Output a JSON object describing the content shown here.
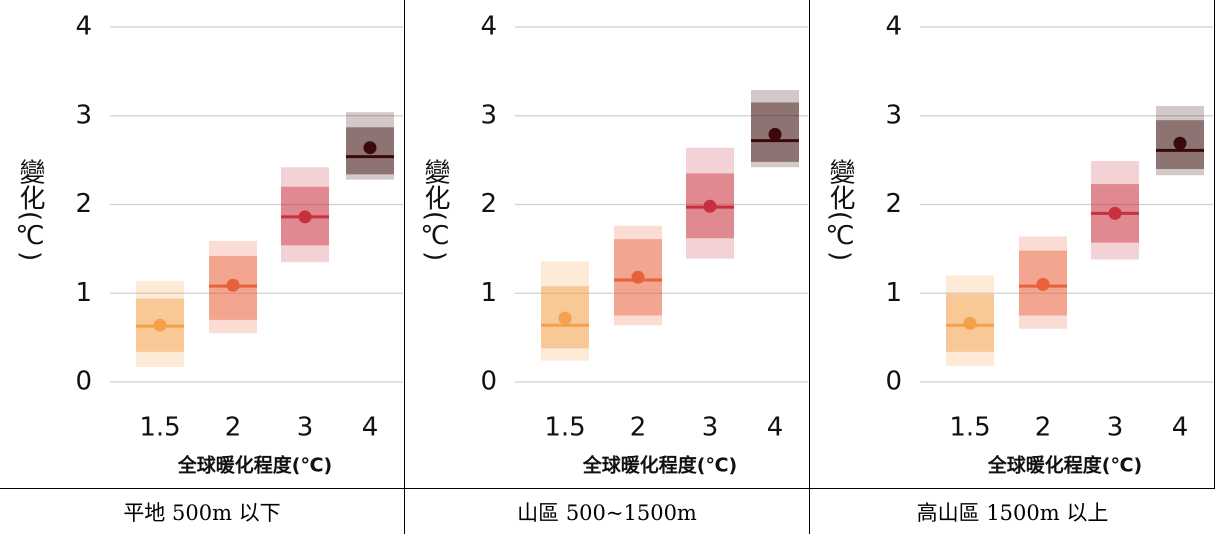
{
  "chart_data": [
    {
      "type": "range",
      "caption": "平地 500m 以下",
      "xlabel": "全球暖化程度(℃)",
      "ylabel": "變化(℃)",
      "categories": [
        "1.5",
        "2",
        "3",
        "4"
      ],
      "colors": [
        "#f5a04a",
        "#e8613c",
        "#c9303f",
        "#3a0a0a"
      ],
      "outer_low": [
        0.17,
        0.55,
        1.35,
        2.28
      ],
      "inner_low": [
        0.34,
        0.7,
        1.54,
        2.34
      ],
      "median": [
        0.63,
        1.08,
        1.86,
        2.54
      ],
      "inner_high": [
        0.94,
        1.42,
        2.2,
        2.87
      ],
      "outer_high": [
        1.14,
        1.59,
        2.42,
        3.04
      ],
      "mean": [
        0.64,
        1.09,
        1.86,
        2.64
      ],
      "ylim": [
        0,
        4
      ],
      "yticks": [
        0,
        1,
        2,
        3,
        4
      ],
      "grid": true
    },
    {
      "type": "range",
      "caption": "山區 500~1500m",
      "xlabel": "全球暖化程度(℃)",
      "ylabel": "變化(℃)",
      "categories": [
        "1.5",
        "2",
        "3",
        "4"
      ],
      "colors": [
        "#f5a04a",
        "#e8613c",
        "#c9303f",
        "#3a0a0a"
      ],
      "outer_low": [
        0.24,
        0.64,
        1.39,
        2.42
      ],
      "inner_low": [
        0.38,
        0.75,
        1.62,
        2.48
      ],
      "median": [
        0.64,
        1.15,
        1.97,
        2.72
      ],
      "inner_high": [
        1.08,
        1.61,
        2.35,
        3.15
      ],
      "outer_high": [
        1.36,
        1.76,
        2.64,
        3.29
      ],
      "mean": [
        0.72,
        1.18,
        1.98,
        2.79
      ],
      "ylim": [
        0,
        4
      ],
      "yticks": [
        0,
        1,
        2,
        3,
        4
      ],
      "grid": true
    },
    {
      "type": "range",
      "caption": "高山區 1500m 以上",
      "xlabel": "全球暖化程度(℃)",
      "ylabel": "變化(℃)",
      "categories": [
        "1.5",
        "2",
        "3",
        "4"
      ],
      "colors": [
        "#f5a04a",
        "#e8613c",
        "#c9303f",
        "#3a0a0a"
      ],
      "outer_low": [
        0.18,
        0.6,
        1.38,
        2.33
      ],
      "inner_low": [
        0.34,
        0.75,
        1.57,
        2.4
      ],
      "median": [
        0.64,
        1.08,
        1.9,
        2.61
      ],
      "inner_high": [
        0.99,
        1.48,
        2.23,
        2.95
      ],
      "outer_high": [
        1.2,
        1.64,
        2.49,
        3.11
      ],
      "mean": [
        0.66,
        1.1,
        1.9,
        2.69
      ],
      "ylim": [
        0,
        4
      ],
      "yticks": [
        0,
        1,
        2,
        3,
        4
      ],
      "grid": true
    }
  ]
}
